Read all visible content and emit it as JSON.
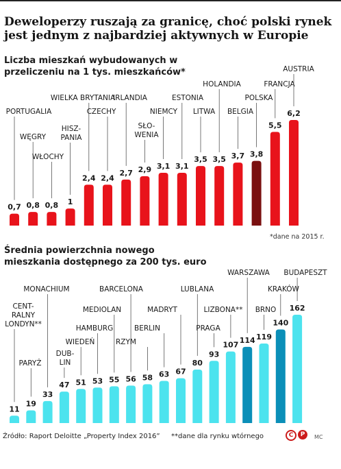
{
  "header": {
    "title": "Deweloperzy ruszają za granicę, choć polski rynek jest jednym z najbardziej aktywnych w Europie"
  },
  "colors": {
    "red": "#e8131b",
    "dark_red": "#7a1010",
    "cyan": "#4ce3ee",
    "dark_cyan": "#0b8fb8",
    "text": "#1a1a1a"
  },
  "chart_data": [
    {
      "type": "bar",
      "title": "Liczba mieszkań wybudowanych w przeliczeniu na 1 tys. mieszkańców*",
      "note": "*dane na 2015 r.",
      "categories": [
        "PORTUGALIA",
        "WĘGRY",
        "WŁOCHY",
        "HISZ-PANIA",
        "WIELKA BRYTANIA",
        "CZECHY",
        "IRLANDIA",
        "SŁO-WENIA",
        "NIEMCY",
        "ESTONIA",
        "LITWA",
        "HOLANDIA",
        "BELGIA",
        "POLSKA",
        "FRANCJA",
        "AUSTRIA"
      ],
      "value_labels": [
        "0,7",
        "0,8",
        "0,8",
        "1",
        "2,4",
        "2,4",
        "2,7",
        "2,9",
        "3,1",
        "3,1",
        "3,5",
        "3,5",
        "3,7",
        "3,8",
        "5,5",
        "6,2"
      ],
      "values": [
        0.7,
        0.8,
        0.8,
        1,
        2.4,
        2.4,
        2.7,
        2.9,
        3.1,
        3.1,
        3.5,
        3.5,
        3.7,
        3.8,
        5.5,
        6.2
      ],
      "highlight": [
        "POLSKA"
      ],
      "ylim": [
        0,
        6.2
      ],
      "grid": false,
      "legend": "none"
    },
    {
      "type": "bar",
      "title": "Średnia powierzchnia nowego mieszkania dostępnego za 200 tys. euro",
      "categories": [
        "CENT-RALNY LONDYN**",
        "PARYŻ",
        "MONACHIUM",
        "DUB-LIN",
        "WIEDEŃ",
        "HAMBURG",
        "MEDIOLAN",
        "BARCELONA",
        "RZYM",
        "BERLIN",
        "MADRYT",
        "LUBLANA",
        "PRAGA",
        "LIZBONA**",
        "WARSZAWA",
        "BRNO",
        "KRAKÓW",
        "BUDAPESZT"
      ],
      "value_labels": [
        "11",
        "19",
        "33",
        "47",
        "51",
        "53",
        "55",
        "56",
        "58",
        "63",
        "67",
        "80",
        "93",
        "107",
        "114",
        "119",
        "140",
        "162"
      ],
      "values": [
        11,
        19,
        33,
        47,
        51,
        53,
        55,
        56,
        58,
        63,
        67,
        80,
        93,
        107,
        114,
        119,
        140,
        162
      ],
      "highlight": [
        "WARSZAWA",
        "KRAKÓW"
      ],
      "ylim": [
        0,
        162
      ],
      "grid": false,
      "legend": "none"
    }
  ],
  "footer": {
    "source": "Źródło: Raport Deloitte „Property Index 2016”",
    "note": "**dane dla rynku wtórnego",
    "logo_c": "C",
    "logo_p": "P",
    "logo_mc": "MC"
  }
}
